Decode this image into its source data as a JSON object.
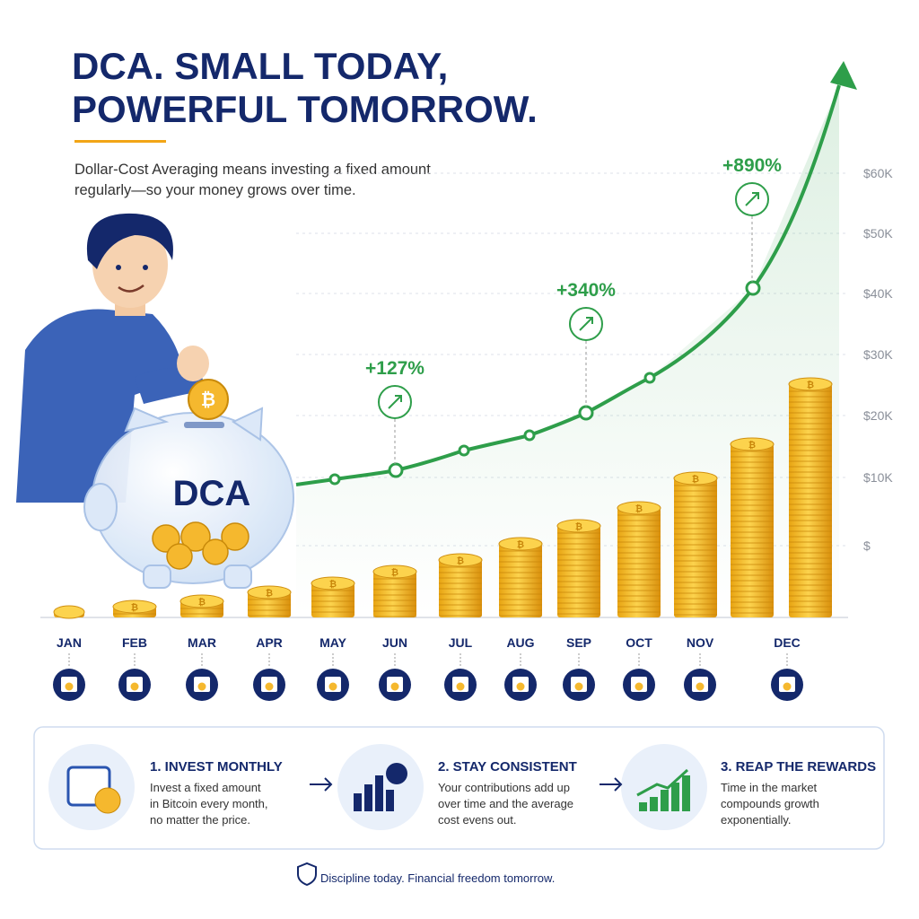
{
  "header": {
    "title_line1": "DCA. SMALL TODAY,",
    "title_line2": "POWERFUL TOMORROW.",
    "subtitle_lines": [
      "Dollar-Cost Averaging means investing a fixed amount",
      "regularly—so your money grows over time."
    ]
  },
  "axis_labels": [
    "$60K",
    "$50K",
    "$40K",
    "$30K",
    "$20K",
    "$10K",
    "$"
  ],
  "piggy_label": "DCA",
  "growth_labels": [
    "+127%",
    "+340%",
    "+890%"
  ],
  "months": [
    "JAN",
    "FEB",
    "MAR",
    "APR",
    "MAY",
    "JUN",
    "JUL",
    "AUG",
    "SEP",
    "OCT",
    "NOV",
    "DEC"
  ],
  "steps": [
    {
      "title": "1. INVEST MONTHLY",
      "lines": [
        "Invest a fixed amount",
        "in Bitcoin every month,",
        "no matter the price."
      ]
    },
    {
      "title": "2. STAY CONSISTENT",
      "lines": [
        "Your contributions add up",
        "over time and the average",
        "cost evens out."
      ]
    },
    {
      "title": "3. REAP THE REWARDS",
      "lines": [
        "Time in the market",
        "compounds growth",
        "exponentially."
      ]
    }
  ],
  "footer": "Discipline today. Financial freedom tomorrow."
}
